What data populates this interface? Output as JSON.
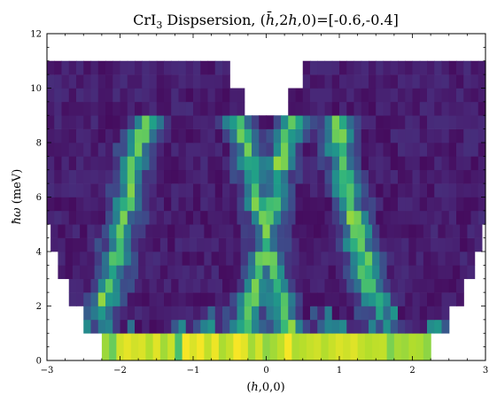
{
  "chart_data": {
    "type": "heatmap",
    "title": {
      "main": "CrI",
      "sub": "3",
      "tail": " Dispsersion, (",
      "hbar": "h̄",
      "mid": ",2",
      "h": "h",
      "end": ",0)=[-0.6,-0.4]"
    },
    "xlabel": {
      "pre": "(",
      "h": "h",
      "post": ",0,0)"
    },
    "ylabel": {
      "hbar": "ħ",
      "omega": "ω",
      "post": " (meV)"
    },
    "xlim": [
      -3,
      3
    ],
    "ylim": [
      0,
      12
    ],
    "xticks": [
      -3,
      -2,
      -1,
      0,
      1,
      2,
      3
    ],
    "yticks": [
      0,
      2,
      4,
      6,
      8,
      10,
      12
    ],
    "x_bin_width": 0.1,
    "energy_bin_edges": [
      0,
      1,
      2,
      3,
      4,
      5,
      6,
      7,
      8,
      9,
      10,
      11
    ],
    "energy_rows": [
      {
        "emin": 0.0,
        "emax": 1.0,
        "coverage": [
          -2.25,
          2.25
        ]
      },
      {
        "emin": 1.0,
        "emax": 2.0,
        "coverage": [
          -2.5,
          2.5
        ]
      },
      {
        "emin": 2.0,
        "emax": 3.0,
        "coverage": [
          -2.7,
          2.7
        ]
      },
      {
        "emin": 3.0,
        "emax": 4.0,
        "coverage": [
          -2.85,
          2.85
        ]
      },
      {
        "emin": 4.0,
        "emax": 5.0,
        "coverage": [
          -2.95,
          2.95
        ]
      },
      {
        "emin": 5.0,
        "emax": 6.0,
        "coverage": [
          -3.0,
          3.0
        ]
      },
      {
        "emin": 6.0,
        "emax": 7.0,
        "coverage": [
          -3.0,
          3.0
        ]
      },
      {
        "emin": 7.0,
        "emax": 8.0,
        "coverage": [
          -3.0,
          3.0
        ]
      },
      {
        "emin": 8.0,
        "emax": 9.0,
        "coverage": [
          -3.0,
          3.0
        ]
      },
      {
        "emin": 9.0,
        "emax": 10.0,
        "coverage": [
          -3.0,
          3.0
        ],
        "gap": [
          -0.3,
          0.3
        ]
      },
      {
        "emin": 10.0,
        "emax": 11.0,
        "coverage": [
          -3.0,
          3.0
        ],
        "gap": [
          -0.5,
          0.5
        ]
      }
    ],
    "dispersion_branches": [
      {
        "center": -1.0,
        "bandwidth": 8.0,
        "points": [
          [
            -2.35,
            1.0
          ],
          [
            -2.15,
            2.5
          ],
          [
            -2.0,
            4.5
          ],
          [
            -1.85,
            6.5
          ],
          [
            -1.75,
            8.0
          ],
          [
            -1.55,
            9.0
          ],
          [
            -1.0,
            9.0
          ],
          [
            -0.45,
            9.0
          ],
          [
            -0.25,
            8.0
          ],
          [
            -0.15,
            6.5
          ],
          [
            0.0,
            4.5
          ],
          [
            0.15,
            2.5
          ],
          [
            0.35,
            1.0
          ]
        ]
      },
      {
        "center": 1.0,
        "bandwidth": 8.0,
        "points": [
          [
            -0.35,
            1.0
          ],
          [
            -0.15,
            2.5
          ],
          [
            0.0,
            4.5
          ],
          [
            0.15,
            6.5
          ],
          [
            0.25,
            8.0
          ],
          [
            0.45,
            9.0
          ],
          [
            1.0,
            9.0
          ],
          [
            1.0,
            8.0
          ],
          [
            1.1,
            6.5
          ],
          [
            1.25,
            4.5
          ],
          [
            1.45,
            2.5
          ],
          [
            1.65,
            1.0
          ]
        ]
      }
    ],
    "elastic_line_energy": 0.5,
    "colormap": "viridis",
    "colormap_stops": [
      "#440154",
      "#482878",
      "#3e4989",
      "#31688e",
      "#26828e",
      "#1f9e89",
      "#35b779",
      "#6ece58",
      "#b5de2b",
      "#fde725"
    ]
  }
}
